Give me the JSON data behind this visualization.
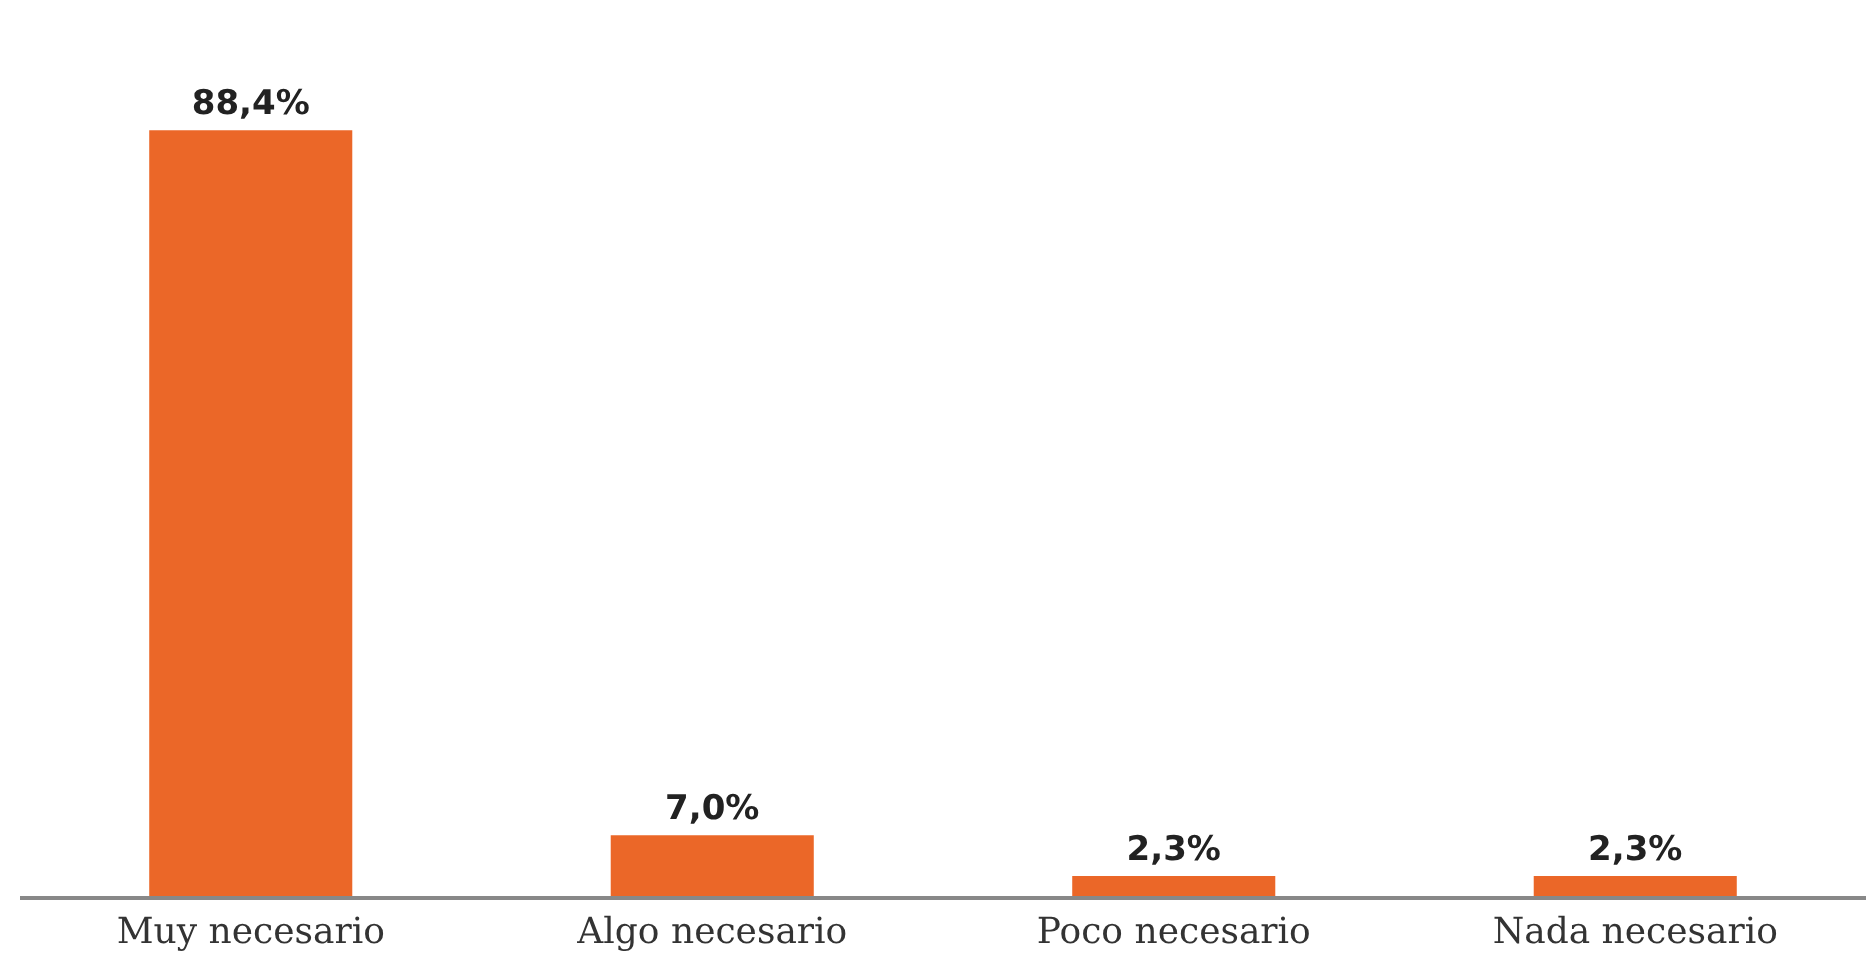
{
  "chart_data": {
    "type": "bar",
    "categories": [
      "Muy necesario",
      "Algo necesario",
      "Poco necesario",
      "Nada necesario"
    ],
    "values": [
      88.4,
      7.0,
      2.3,
      2.3
    ],
    "value_labels": [
      "88,4%",
      "7,0%",
      "2,3%",
      "2,3%"
    ],
    "color": "#eb6728",
    "tick_labels": "x"
  }
}
